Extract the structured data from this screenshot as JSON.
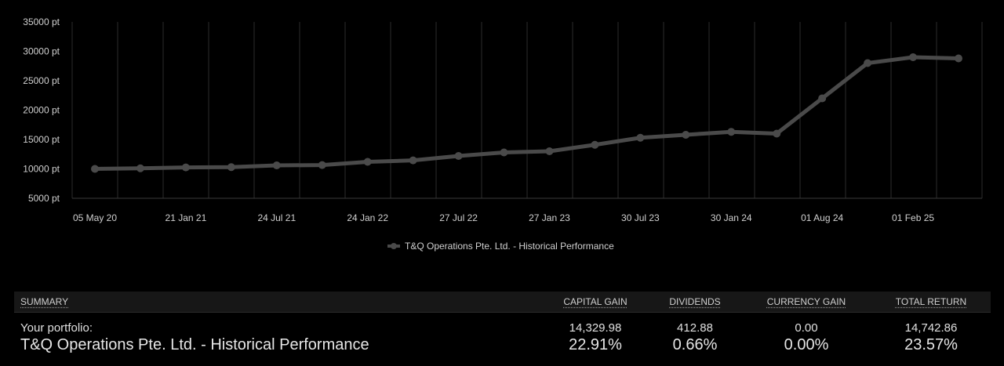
{
  "chart_data": {
    "type": "line",
    "x": [
      "05 May 20",
      "",
      "21 Jan 21",
      "",
      "24 Jul 21",
      "",
      "24 Jan 22",
      "",
      "27 Jul 22",
      "",
      "27 Jan 23",
      "",
      "30 Jul 23",
      "",
      "30 Jan 24",
      "",
      "01 Aug 24",
      "",
      "01 Feb 25",
      ""
    ],
    "x_tick_labels": [
      "05 May 20",
      "21 Jan 21",
      "24 Jul 21",
      "24 Jan 22",
      "27 Jul 22",
      "27 Jan 23",
      "30 Jul 23",
      "30 Jan 24",
      "01 Aug 24",
      "01 Feb 25"
    ],
    "series": [
      {
        "name": "T&Q Operations Pte. Ltd. - Historical Performance",
        "color": "#4a4a4a",
        "values": [
          10000,
          10100,
          10250,
          10300,
          10600,
          10650,
          11200,
          11450,
          12200,
          12800,
          13000,
          14100,
          15300,
          15800,
          16300,
          16000,
          22000,
          28000,
          29000,
          28800
        ]
      }
    ],
    "y_ticks": [
      "35000 pt",
      "30000 pt",
      "25000 pt",
      "20000 pt",
      "15000 pt",
      "10000 pt",
      "5000 pt"
    ],
    "ylim": [
      5000,
      35000
    ],
    "grid": "vertical",
    "legend": "bottom-center"
  },
  "summary": {
    "headers": {
      "summary": "SUMMARY",
      "capital_gain": "CAPITAL GAIN",
      "dividends": "DIVIDENDS",
      "currency_gain": "CURRENCY GAIN",
      "total_return": "TOTAL RETURN"
    },
    "portfolio": {
      "label": "Your portfolio:",
      "capital_gain": "14,329.98",
      "dividends": "412.88",
      "currency_gain": "0.00",
      "total_return": "14,742.86"
    },
    "performance": {
      "label": "T&Q Operations Pte. Ltd. - Historical Performance",
      "capital_gain": "22.91%",
      "dividends": "0.66%",
      "currency_gain": "0.00%",
      "total_return": "23.57%"
    }
  }
}
